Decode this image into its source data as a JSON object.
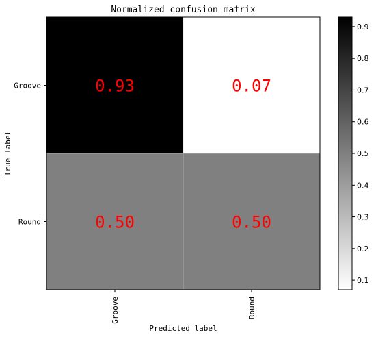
{
  "chart_data": {
    "type": "heatmap",
    "title": "Normalized confusion matrix",
    "xlabel": "Predicted label",
    "ylabel": "True label",
    "x_categories": [
      "Groove",
      "Round"
    ],
    "y_categories": [
      "Groove",
      "Round"
    ],
    "values": [
      [
        0.93,
        0.07
      ],
      [
        0.5,
        0.5
      ]
    ],
    "cell_labels": [
      [
        "0.93",
        "0.07"
      ],
      [
        "0.50",
        "0.50"
      ]
    ],
    "colormap": "greys",
    "annotation_color": "#ff0000",
    "colorbar": {
      "range": [
        0.07,
        0.93
      ],
      "ticks": [
        0.1,
        0.2,
        0.3,
        0.4,
        0.5,
        0.6,
        0.7,
        0.8,
        0.9
      ],
      "tick_labels": [
        "0.1",
        "0.2",
        "0.3",
        "0.4",
        "0.5",
        "0.6",
        "0.7",
        "0.8",
        "0.9"
      ]
    }
  }
}
